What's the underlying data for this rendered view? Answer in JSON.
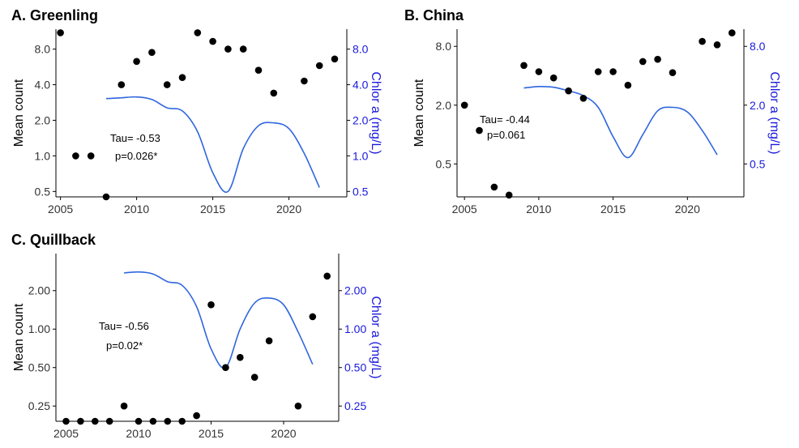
{
  "colors": {
    "points": "#000000",
    "chlor_line": "#2f66de",
    "right_axis_text": "#1a1adb"
  },
  "chart_data": [
    {
      "type": "scatter",
      "title": "A. Greenling",
      "ylabel": "Mean count",
      "ylabel_right": "Chlor a (mg/L)",
      "xlim": [
        2004.7,
        2023.8
      ],
      "x_ticks": [
        2005,
        2010,
        2015,
        2020
      ],
      "y_scale": "log",
      "ylim": [
        0.45,
        11.8
      ],
      "y_ticks": [
        0.5,
        1.0,
        2.0,
        4.0,
        8.0
      ],
      "y_tick_labels": [
        "0.5",
        "1.0",
        "2.0",
        "4.0",
        "8.0"
      ],
      "y2_scale": "log",
      "y2lim": [
        0.45,
        11.8
      ],
      "y2_ticks": [
        0.5,
        1.0,
        2.0,
        4.0,
        8.0
      ],
      "y2_tick_labels": [
        "0.5",
        "1.0",
        "2.0",
        "4.0",
        "8.0"
      ],
      "annotation_tau": "Tau= -0.53",
      "annotation_p": "p=0.026*",
      "points": [
        [
          2005,
          11.0
        ],
        [
          2006,
          1.0
        ],
        [
          2007,
          1.0
        ],
        [
          2008,
          0.45
        ],
        [
          2009,
          4.0
        ],
        [
          2010,
          6.3
        ],
        [
          2011,
          7.5
        ],
        [
          2012,
          4.0
        ],
        [
          2013,
          4.6
        ],
        [
          2014,
          11.0
        ],
        [
          2015,
          9.3
        ],
        [
          2016,
          8.0
        ],
        [
          2017,
          8.0
        ],
        [
          2018,
          5.3
        ],
        [
          2019,
          3.4
        ],
        [
          2021,
          4.3
        ],
        [
          2022,
          5.8
        ],
        [
          2023,
          6.6
        ]
      ],
      "chlor_series": [
        [
          2008,
          3.05
        ],
        [
          2009,
          3.1
        ],
        [
          2010,
          3.15
        ],
        [
          2011,
          3.0
        ],
        [
          2012,
          2.55
        ],
        [
          2013,
          2.4
        ],
        [
          2014,
          1.6
        ],
        [
          2015,
          0.72
        ],
        [
          2016,
          0.5
        ],
        [
          2017,
          1.15
        ],
        [
          2018,
          1.8
        ],
        [
          2019,
          1.9
        ],
        [
          2020,
          1.7
        ],
        [
          2021,
          1.05
        ],
        [
          2022,
          0.54
        ]
      ]
    },
    {
      "type": "scatter",
      "title": "B. China",
      "ylabel": "Mean count",
      "ylabel_right": "Chlor a (mg/L)",
      "xlim": [
        2004.5,
        2023.8
      ],
      "x_ticks": [
        2005,
        2010,
        2015,
        2020
      ],
      "y_scale": "log",
      "ylim": [
        0.23,
        12.0
      ],
      "y_ticks": [
        0.5,
        2.0,
        8.0
      ],
      "y_tick_labels": [
        "0.5",
        "2.0",
        "8.0"
      ],
      "y2_scale": "log",
      "y2lim": [
        0.23,
        12.0
      ],
      "y2_ticks": [
        0.5,
        2.0,
        8.0
      ],
      "y2_tick_labels": [
        "0.5",
        "2.0",
        "8.0"
      ],
      "annotation_tau": "Tau= -0.44",
      "annotation_p": "p=0.061",
      "points": [
        [
          2005,
          2.0
        ],
        [
          2006,
          1.1
        ],
        [
          2007,
          0.29
        ],
        [
          2008,
          0.24
        ],
        [
          2009,
          5.1
        ],
        [
          2010,
          4.4
        ],
        [
          2011,
          3.8
        ],
        [
          2012,
          2.8
        ],
        [
          2013,
          2.35
        ],
        [
          2014,
          4.4
        ],
        [
          2015,
          4.4
        ],
        [
          2016,
          3.2
        ],
        [
          2017,
          5.6
        ],
        [
          2018,
          5.9
        ],
        [
          2019,
          4.3
        ],
        [
          2021,
          9.0
        ],
        [
          2022,
          8.3
        ],
        [
          2023,
          11.0
        ]
      ],
      "chlor_series": [
        [
          2009,
          3.0
        ],
        [
          2010,
          3.1
        ],
        [
          2011,
          3.05
        ],
        [
          2012,
          2.8
        ],
        [
          2013,
          2.5
        ],
        [
          2014,
          1.9
        ],
        [
          2015,
          0.95
        ],
        [
          2016,
          0.58
        ],
        [
          2017,
          1.0
        ],
        [
          2018,
          1.75
        ],
        [
          2019,
          1.9
        ],
        [
          2020,
          1.7
        ],
        [
          2021,
          1.1
        ],
        [
          2022,
          0.62
        ]
      ]
    },
    {
      "type": "scatter",
      "title": "C. Quillback",
      "ylabel": "Mean count",
      "ylabel_right": "Chlor a (mg/L)",
      "xlim": [
        2004.3,
        2023.8
      ],
      "x_ticks": [
        2005,
        2010,
        2015,
        2020
      ],
      "y_scale": "log",
      "ylim": [
        0.19,
        3.9
      ],
      "y_ticks": [
        0.25,
        0.5,
        1.0,
        2.0
      ],
      "y_tick_labels": [
        "0.25",
        "0.50",
        "1.00",
        "2.00"
      ],
      "y2_scale": "log",
      "y2lim": [
        0.19,
        3.9
      ],
      "y2_ticks": [
        0.25,
        0.5,
        1.0,
        2.0
      ],
      "y2_tick_labels": [
        "0.25",
        "0.50",
        "1.00",
        "2.00"
      ],
      "annotation_tau": "Tau= -0.56",
      "annotation_p": "p=0.02*",
      "points": [
        [
          2005,
          0.19
        ],
        [
          2006,
          0.19
        ],
        [
          2007,
          0.19
        ],
        [
          2008,
          0.19
        ],
        [
          2009,
          0.25
        ],
        [
          2010,
          0.19
        ],
        [
          2011,
          0.19
        ],
        [
          2012,
          0.19
        ],
        [
          2013,
          0.19
        ],
        [
          2014,
          0.21
        ],
        [
          2015,
          1.55
        ],
        [
          2016,
          0.5
        ],
        [
          2017,
          0.6
        ],
        [
          2018,
          0.42
        ],
        [
          2019,
          0.81
        ],
        [
          2021,
          0.25
        ],
        [
          2022,
          1.25
        ],
        [
          2023,
          2.6
        ]
      ],
      "chlor_series": [
        [
          2009,
          2.75
        ],
        [
          2010,
          2.8
        ],
        [
          2011,
          2.7
        ],
        [
          2012,
          2.35
        ],
        [
          2013,
          2.2
        ],
        [
          2014,
          1.5
        ],
        [
          2015,
          0.7
        ],
        [
          2016,
          0.5
        ],
        [
          2017,
          1.0
        ],
        [
          2018,
          1.6
        ],
        [
          2019,
          1.75
        ],
        [
          2020,
          1.55
        ],
        [
          2021,
          0.95
        ],
        [
          2022,
          0.53
        ]
      ]
    }
  ]
}
